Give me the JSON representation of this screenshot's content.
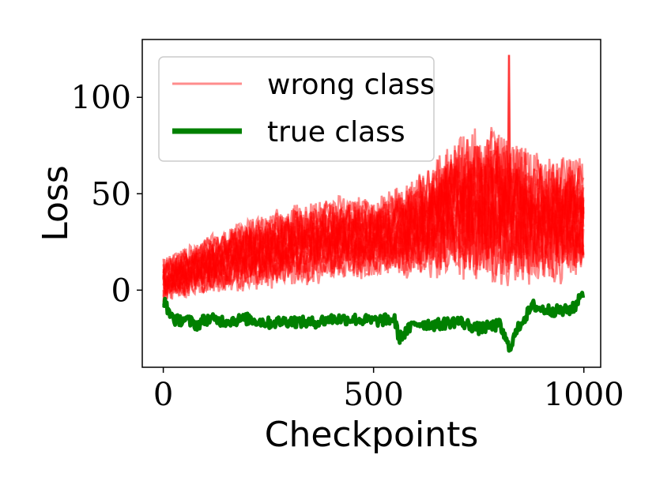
{
  "chart_data": {
    "type": "line",
    "title": "",
    "xlabel": "Checkpoints",
    "ylabel": "Loss",
    "xlim": [
      -50,
      1040
    ],
    "ylim": [
      -40,
      130
    ],
    "xticks": [
      0,
      500,
      1000
    ],
    "yticks": [
      0,
      50,
      100
    ],
    "grid": false,
    "legend_position": "top-left",
    "n_checkpoints": 1000,
    "series": [
      {
        "name": "wrong class",
        "color": "#ff0000",
        "alpha": 0.45,
        "line_count": 20,
        "description_points": {
          "x": [
            0,
            100,
            200,
            300,
            400,
            500,
            600,
            700,
            800,
            900,
            990
          ],
          "y_low": [
            -5,
            0,
            3,
            5,
            8,
            10,
            10,
            12,
            8,
            8,
            10
          ],
          "y_high": [
            15,
            25,
            35,
            40,
            45,
            45,
            55,
            75,
            80,
            65,
            65
          ]
        },
        "peak": {
          "x": 822,
          "y": 122
        }
      },
      {
        "name": "true class",
        "color": "#008000",
        "alpha": 1.0,
        "line_count": 1,
        "x": [
          0,
          10,
          30,
          50,
          80,
          100,
          150,
          200,
          250,
          300,
          350,
          400,
          450,
          500,
          550,
          560,
          600,
          650,
          700,
          750,
          800,
          822,
          850,
          880,
          900,
          950,
          980,
          990
        ],
        "y": [
          -5,
          -10,
          -16,
          -15,
          -18,
          -15,
          -16,
          -15,
          -17,
          -16,
          -17,
          -15,
          -15,
          -16,
          -15,
          -25,
          -17,
          -18,
          -16,
          -20,
          -18,
          -30,
          -17,
          -8,
          -10,
          -11,
          -9,
          -2
        ]
      }
    ]
  }
}
